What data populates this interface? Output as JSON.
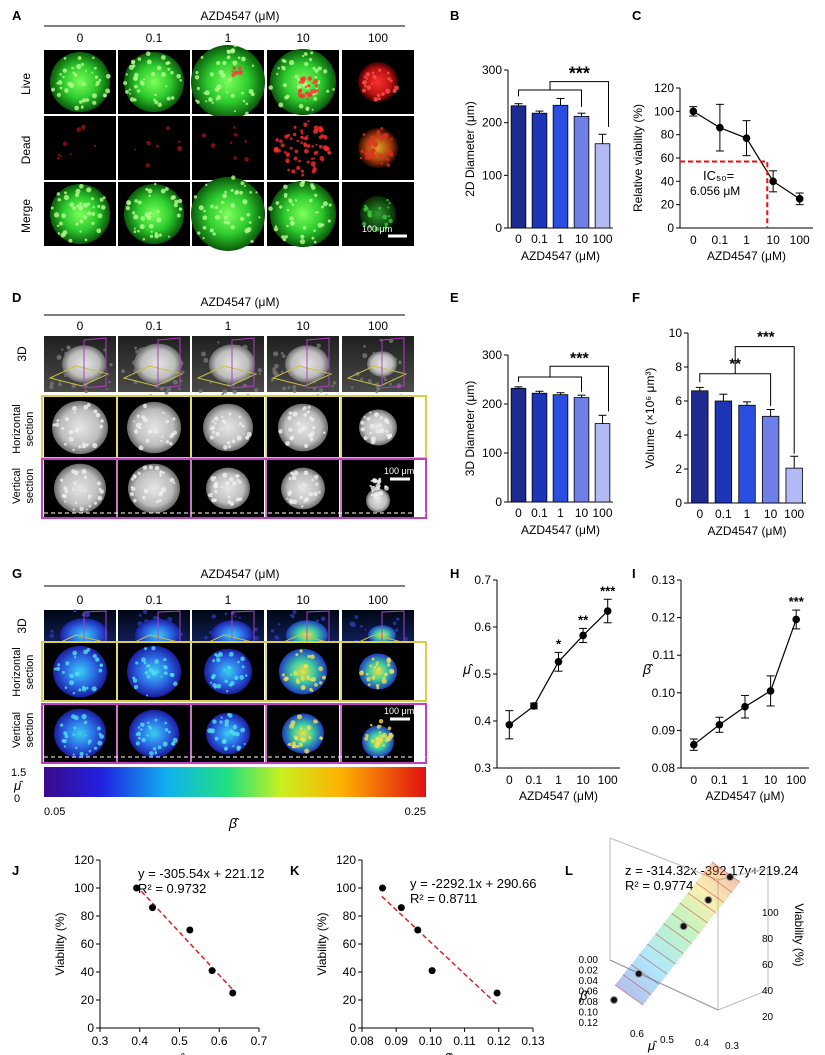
{
  "images": {
    "title": "AZD4547 (μM)",
    "concentrations": [
      "0",
      "0.1",
      "1",
      "10",
      "100"
    ],
    "rows_A": [
      "Live",
      "Dead",
      "Merge"
    ],
    "rows_D": [
      "3D",
      "Horizontal section",
      "Vertical section"
    ],
    "rows_G": [
      "3D",
      "Horizontal section",
      "Vertical section"
    ],
    "scale": "100  μm",
    "colorbar": {
      "mu_label": "μ̂",
      "mu_max": "1.5",
      "mu_min": "0",
      "beta_min": "0.05",
      "beta_max": "0.25",
      "beta_label": "β̂"
    }
  },
  "chart_data": [
    {
      "panel": "B",
      "type": "bar",
      "xlabel": "AZD4547 (μM)",
      "ylabel": "2D Diameter (μm)",
      "categories": [
        "0",
        "0.1",
        "1",
        "10",
        "100"
      ],
      "values": [
        232,
        218,
        233,
        212,
        160
      ],
      "errors": [
        4,
        4,
        13,
        6,
        18
      ],
      "ylim": [
        0,
        300
      ],
      "yticks": [
        "0",
        "100",
        "200",
        "300"
      ],
      "significance": [
        "***"
      ],
      "colors": [
        "#1f2a8f",
        "#1d36b8",
        "#2a4fe0",
        "#6f7fe8",
        "#b3b9f2"
      ]
    },
    {
      "panel": "C",
      "type": "line",
      "xlabel": "AZD4547 (μM)",
      "ylabel": "Relative viability (%)",
      "categories": [
        "0",
        "0.1",
        "1",
        "10",
        "100"
      ],
      "x": [
        0,
        0.1,
        1,
        10,
        100
      ],
      "values": [
        100,
        86,
        77,
        40,
        25
      ],
      "errors": [
        4,
        20,
        15,
        9,
        5
      ],
      "ylim": [
        0,
        120
      ],
      "yticks": [
        "0",
        "20",
        "40",
        "60",
        "80",
        "100",
        "120"
      ],
      "annotation": "IC₅₀=",
      "annotation_value": "6.056 μM",
      "ic50": 6.056
    },
    {
      "panel": "E",
      "type": "bar",
      "xlabel": "AZD4547 (μM)",
      "ylabel": "3D Diameter (μm)",
      "categories": [
        "0",
        "0.1",
        "1",
        "10",
        "100"
      ],
      "values": [
        232,
        222,
        219,
        213,
        160
      ],
      "errors": [
        3,
        4,
        4,
        5,
        17
      ],
      "ylim": [
        0,
        300
      ],
      "yticks": [
        "0",
        "100",
        "200",
        "300"
      ],
      "significance": [
        "***"
      ],
      "colors": [
        "#1f2a8f",
        "#1d36b8",
        "#2a4fe0",
        "#6f7fe8",
        "#b3b9f2"
      ]
    },
    {
      "panel": "F",
      "type": "bar",
      "xlabel": "AZD4547 (μM)",
      "ylabel": "Volume (×10⁶ μm³)",
      "categories": [
        "0",
        "0.1",
        "1",
        "10",
        "100"
      ],
      "values": [
        6.6,
        6.0,
        5.75,
        5.1,
        2.05
      ],
      "errors": [
        0.2,
        0.4,
        0.2,
        0.4,
        0.7
      ],
      "ylim": [
        0,
        10
      ],
      "yticks": [
        "0",
        "2",
        "4",
        "6",
        "8",
        "10"
      ],
      "significance": [
        "**",
        "***"
      ],
      "colors": [
        "#1f2a8f",
        "#1d36b8",
        "#2a4fe0",
        "#6f7fe8",
        "#b3b9f2"
      ]
    },
    {
      "panel": "H",
      "type": "line",
      "xlabel": "AZD4547 (μM)",
      "ylabel": "μ̂",
      "categories": [
        "0",
        "0.1",
        "1",
        "10",
        "100"
      ],
      "values": [
        0.392,
        0.432,
        0.526,
        0.582,
        0.634
      ],
      "errors": [
        0.03,
        0.006,
        0.02,
        0.015,
        0.025
      ],
      "ylim": [
        0.3,
        0.7
      ],
      "yticks": [
        "0.3",
        "0.4",
        "0.5",
        "0.6",
        "0.7"
      ],
      "stars": [
        "",
        "",
        "*",
        "**",
        "***"
      ]
    },
    {
      "panel": "I",
      "type": "line",
      "xlabel": "AZD4547 (μM)",
      "ylabel": "β̂",
      "categories": [
        "0",
        "0.1",
        "1",
        "10",
        "100"
      ],
      "values": [
        0.0862,
        0.0915,
        0.0963,
        0.1005,
        0.1195
      ],
      "errors": [
        0.0015,
        0.002,
        0.003,
        0.004,
        0.0025
      ],
      "ylim": [
        0.08,
        0.13
      ],
      "yticks": [
        "0.08",
        "0.09",
        "0.10",
        "0.11",
        "0.12",
        "0.13"
      ],
      "stars": [
        "",
        "",
        "",
        "",
        "***"
      ]
    },
    {
      "panel": "J",
      "type": "scatter",
      "xlabel": "μ̂",
      "ylabel": "Viability (%)",
      "x": [
        0.392,
        0.432,
        0.526,
        0.582,
        0.634
      ],
      "y": [
        100,
        86,
        70,
        41,
        25
      ],
      "xlim": [
        0.3,
        0.7
      ],
      "ylim": [
        0,
        120
      ],
      "xticks": [
        "0.3",
        "0.4",
        "0.5",
        "0.6",
        "0.7"
      ],
      "yticks": [
        "0",
        "20",
        "40",
        "60",
        "80",
        "100",
        "120"
      ],
      "fit": {
        "slope": -305.54,
        "intercept": 221.12
      },
      "equation": "y = -305.54x + 221.12",
      "r2": "R² = 0.9732"
    },
    {
      "panel": "K",
      "type": "scatter",
      "xlabel": "β̂",
      "ylabel": "Viability (%)",
      "x": [
        0.086,
        0.0915,
        0.0963,
        0.1005,
        0.1195
      ],
      "y": [
        100,
        86,
        70,
        41,
        25
      ],
      "xlim": [
        0.08,
        0.13
      ],
      "ylim": [
        0,
        120
      ],
      "xticks": [
        "0.08",
        "0.09",
        "0.10",
        "0.11",
        "0.12",
        "0.13"
      ],
      "yticks": [
        "0",
        "20",
        "40",
        "60",
        "80",
        "100",
        "120"
      ],
      "fit": {
        "slope": -2292.1,
        "intercept": 290.66
      },
      "equation": "y = -2292.1x + 290.66",
      "r2": "R² = 0.8711"
    },
    {
      "panel": "L",
      "type": "scatter",
      "xlabel": "μ̂",
      "ylabel": "β̂",
      "zlabel": "Viability (%)",
      "x": [
        0.392,
        0.432,
        0.526,
        0.582,
        0.634
      ],
      "y": [
        0.0862,
        0.0915,
        0.0963,
        0.1005,
        0.1195
      ],
      "z": [
        100,
        86,
        70,
        41,
        25
      ],
      "equation": "z = -314.32x -392.17y+219.24",
      "r2": "R² = 0.9774",
      "xticks": [
        "0.6",
        "0.5",
        "0.4",
        "0.3"
      ],
      "yticks": [
        "0.00",
        "0.02",
        "0.04",
        "0.06",
        "0.08",
        "0.10",
        "0.12"
      ],
      "zticks": [
        "20",
        "40",
        "60",
        "80",
        "100"
      ]
    }
  ],
  "panel_letters": [
    "A",
    "B",
    "C",
    "D",
    "E",
    "F",
    "G",
    "H",
    "I",
    "J",
    "K",
    "L"
  ]
}
